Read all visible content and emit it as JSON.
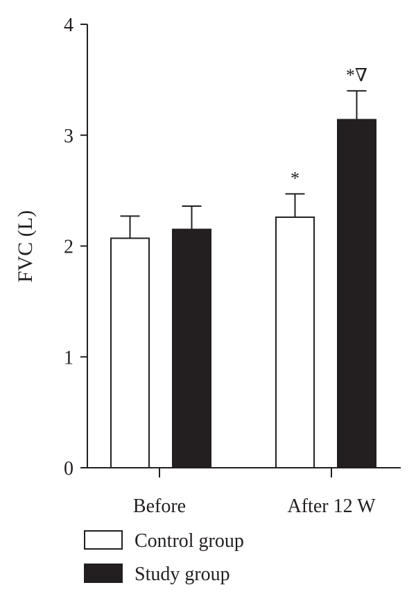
{
  "chart_data": {
    "type": "bar",
    "ylabel": "FVC (L)",
    "ylim": [
      0,
      4
    ],
    "yticks": [
      0,
      1,
      2,
      3,
      4
    ],
    "categories": [
      "Before",
      "After 12 W"
    ],
    "series": [
      {
        "name": "Control group",
        "values": [
          2.07,
          2.26
        ],
        "errors": [
          0.2,
          0.21
        ],
        "fill": "#ffffff"
      },
      {
        "name": "Study group",
        "values": [
          2.15,
          3.14
        ],
        "errors": [
          0.21,
          0.26
        ],
        "fill": "#231f20"
      }
    ],
    "annotations": [
      {
        "category_index": 1,
        "series_index": 0,
        "text": "*"
      },
      {
        "category_index": 1,
        "series_index": 1,
        "text": "*∇"
      }
    ],
    "grid": false,
    "legend": "bottom-left"
  }
}
